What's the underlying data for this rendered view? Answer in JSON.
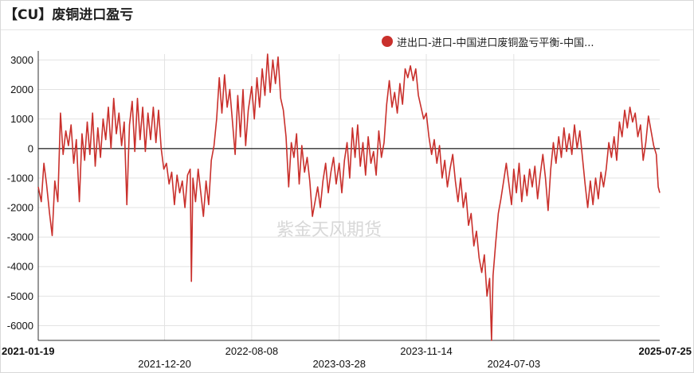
{
  "title": "【CU】废铜进口盈亏",
  "watermark": "紫金天风期货",
  "colors": {
    "series": "#c9302c",
    "grid": "#e2e2e2",
    "zero_line": "#333333"
  },
  "chart_data": {
    "type": "line",
    "title": "【CU】废铜进口盈亏",
    "xlabel": "",
    "ylabel": "",
    "ylim": [
      -6500,
      3200
    ],
    "yticks": [
      3000,
      2000,
      1000,
      0,
      -1000,
      -2000,
      -3000,
      -4000,
      -5000,
      -6000
    ],
    "ytick_labels": [
      "3000",
      "2000",
      "1000",
      "0",
      "-1000",
      "-2000",
      "-3000",
      "-4000",
      "-5000",
      "-6000"
    ],
    "xlim": [
      "2021-01-19",
      "2025-07-25"
    ],
    "xticks": [
      "2021-01-19",
      "2021-12-20",
      "2022-08-08",
      "2023-03-28",
      "2023-11-14",
      "2024-07-03",
      "2025-07-25"
    ],
    "xtick_rows": [
      0,
      1,
      0,
      1,
      0,
      1,
      0
    ],
    "xtick_bold": [
      true,
      false,
      false,
      false,
      false,
      false,
      true
    ],
    "grid": true,
    "legend": "top-right",
    "series": [
      {
        "name": "进出口-进口-中国进口废铜盈亏平衡-中国...",
        "points": [
          [
            "2021-01-19",
            -1300
          ],
          [
            "2021-01-27",
            -1800
          ],
          [
            "2021-02-03",
            -500
          ],
          [
            "2021-02-10",
            -1200
          ],
          [
            "2021-02-18",
            -2200
          ],
          [
            "2021-02-25",
            -2950
          ],
          [
            "2021-03-04",
            -1100
          ],
          [
            "2021-03-12",
            -1800
          ],
          [
            "2021-03-19",
            1200
          ],
          [
            "2021-03-26",
            -200
          ],
          [
            "2021-04-02",
            600
          ],
          [
            "2021-04-09",
            100
          ],
          [
            "2021-04-16",
            800
          ],
          [
            "2021-04-23",
            -500
          ],
          [
            "2021-04-30",
            300
          ],
          [
            "2021-05-08",
            -1800
          ],
          [
            "2021-05-15",
            500
          ],
          [
            "2021-05-22",
            -400
          ],
          [
            "2021-05-29",
            900
          ],
          [
            "2021-06-05",
            -200
          ],
          [
            "2021-06-12",
            1200
          ],
          [
            "2021-06-19",
            -600
          ],
          [
            "2021-06-26",
            700
          ],
          [
            "2021-07-03",
            -300
          ],
          [
            "2021-07-10",
            1000
          ],
          [
            "2021-07-17",
            300
          ],
          [
            "2021-07-24",
            1400
          ],
          [
            "2021-07-31",
            0
          ],
          [
            "2021-08-07",
            1700
          ],
          [
            "2021-08-14",
            500
          ],
          [
            "2021-08-21",
            1200
          ],
          [
            "2021-08-28",
            100
          ],
          [
            "2021-09-04",
            900
          ],
          [
            "2021-09-11",
            -1900
          ],
          [
            "2021-09-18",
            800
          ],
          [
            "2021-09-25",
            1600
          ],
          [
            "2021-10-02",
            -100
          ],
          [
            "2021-10-09",
            1700
          ],
          [
            "2021-10-16",
            300
          ],
          [
            "2021-10-23",
            1400
          ],
          [
            "2021-10-30",
            -100
          ],
          [
            "2021-11-06",
            1200
          ],
          [
            "2021-11-13",
            300
          ],
          [
            "2021-11-20",
            1400
          ],
          [
            "2021-11-27",
            200
          ],
          [
            "2021-12-04",
            1300
          ],
          [
            "2021-12-11",
            0
          ],
          [
            "2021-12-18",
            -700
          ],
          [
            "2021-12-25",
            -500
          ],
          [
            "2022-01-01",
            -1200
          ],
          [
            "2022-01-08",
            -800
          ],
          [
            "2022-01-15",
            -1900
          ],
          [
            "2022-01-22",
            -900
          ],
          [
            "2022-01-29",
            -1500
          ],
          [
            "2022-02-05",
            -1100
          ],
          [
            "2022-02-12",
            -2000
          ],
          [
            "2022-02-19",
            -900
          ],
          [
            "2022-02-26",
            -700
          ],
          [
            "2022-03-01",
            -4500
          ],
          [
            "2022-03-05",
            -1000
          ],
          [
            "2022-03-12",
            -1800
          ],
          [
            "2022-03-19",
            -700
          ],
          [
            "2022-03-26",
            -1500
          ],
          [
            "2022-04-02",
            -2300
          ],
          [
            "2022-04-09",
            -1100
          ],
          [
            "2022-04-16",
            -1900
          ],
          [
            "2022-04-23",
            -400
          ],
          [
            "2022-04-30",
            100
          ],
          [
            "2022-05-07",
            1000
          ],
          [
            "2022-05-14",
            2400
          ],
          [
            "2022-05-21",
            1200
          ],
          [
            "2022-05-28",
            2500
          ],
          [
            "2022-06-04",
            1400
          ],
          [
            "2022-06-11",
            2000
          ],
          [
            "2022-06-18",
            900
          ],
          [
            "2022-06-25",
            -200
          ],
          [
            "2022-07-02",
            1800
          ],
          [
            "2022-07-09",
            400
          ],
          [
            "2022-07-16",
            2000
          ],
          [
            "2022-07-23",
            100
          ],
          [
            "2022-07-30",
            1300
          ],
          [
            "2022-08-08",
            2100
          ],
          [
            "2022-08-15",
            1000
          ],
          [
            "2022-08-22",
            2400
          ],
          [
            "2022-08-29",
            1400
          ],
          [
            "2022-09-05",
            2700
          ],
          [
            "2022-09-12",
            1800
          ],
          [
            "2022-09-19",
            3200
          ],
          [
            "2022-09-26",
            1900
          ],
          [
            "2022-10-03",
            3000
          ],
          [
            "2022-10-10",
            2200
          ],
          [
            "2022-10-17",
            3100
          ],
          [
            "2022-10-24",
            1700
          ],
          [
            "2022-10-31",
            1300
          ],
          [
            "2022-11-07",
            400
          ],
          [
            "2022-11-14",
            -1300
          ],
          [
            "2022-11-21",
            200
          ],
          [
            "2022-11-28",
            -300
          ],
          [
            "2022-12-05",
            500
          ],
          [
            "2022-12-12",
            -1200
          ],
          [
            "2022-12-19",
            100
          ],
          [
            "2022-12-26",
            -800
          ],
          [
            "2023-01-02",
            -300
          ],
          [
            "2023-01-09",
            -1100
          ],
          [
            "2023-01-16",
            -2300
          ],
          [
            "2023-01-23",
            -1800
          ],
          [
            "2023-01-30",
            -1300
          ],
          [
            "2023-02-06",
            -2000
          ],
          [
            "2023-02-13",
            -1100
          ],
          [
            "2023-02-20",
            -500
          ],
          [
            "2023-02-27",
            -1500
          ],
          [
            "2023-03-06",
            -800
          ],
          [
            "2023-03-13",
            -300
          ],
          [
            "2023-03-20",
            -1200
          ],
          [
            "2023-03-28",
            -500
          ],
          [
            "2023-04-04",
            -1500
          ],
          [
            "2023-04-11",
            -400
          ],
          [
            "2023-04-18",
            200
          ],
          [
            "2023-04-25",
            -1000
          ],
          [
            "2023-05-02",
            700
          ],
          [
            "2023-05-09",
            -300
          ],
          [
            "2023-05-16",
            800
          ],
          [
            "2023-05-23",
            -600
          ],
          [
            "2023-05-30",
            200
          ],
          [
            "2023-06-06",
            -900
          ],
          [
            "2023-06-13",
            400
          ],
          [
            "2023-06-20",
            -500
          ],
          [
            "2023-06-27",
            -100
          ],
          [
            "2023-07-04",
            -900
          ],
          [
            "2023-07-11",
            600
          ],
          [
            "2023-07-18",
            -300
          ],
          [
            "2023-07-25",
            200
          ],
          [
            "2023-08-01",
            1500
          ],
          [
            "2023-08-08",
            2300
          ],
          [
            "2023-08-15",
            1400
          ],
          [
            "2023-08-22",
            1900
          ],
          [
            "2023-08-29",
            1200
          ],
          [
            "2023-09-05",
            2200
          ],
          [
            "2023-09-12",
            1500
          ],
          [
            "2023-09-19",
            2700
          ],
          [
            "2023-09-26",
            2400
          ],
          [
            "2023-10-03",
            2800
          ],
          [
            "2023-10-10",
            2300
          ],
          [
            "2023-10-17",
            2700
          ],
          [
            "2023-10-24",
            1800
          ],
          [
            "2023-10-31",
            1400
          ],
          [
            "2023-11-07",
            1000
          ],
          [
            "2023-11-14",
            1200
          ],
          [
            "2023-11-21",
            400
          ],
          [
            "2023-11-28",
            -200
          ],
          [
            "2023-12-05",
            300
          ],
          [
            "2023-12-12",
            -500
          ],
          [
            "2023-12-19",
            100
          ],
          [
            "2023-12-26",
            -1000
          ],
          [
            "2024-01-02",
            -400
          ],
          [
            "2024-01-09",
            -1300
          ],
          [
            "2024-01-16",
            -700
          ],
          [
            "2024-01-23",
            -200
          ],
          [
            "2024-01-30",
            -1100
          ],
          [
            "2024-02-06",
            -1800
          ],
          [
            "2024-02-13",
            -1000
          ],
          [
            "2024-02-20",
            -2000
          ],
          [
            "2024-02-27",
            -1500
          ],
          [
            "2024-03-05",
            -2600
          ],
          [
            "2024-03-12",
            -2200
          ],
          [
            "2024-03-19",
            -3300
          ],
          [
            "2024-03-26",
            -2800
          ],
          [
            "2024-04-02",
            -3700
          ],
          [
            "2024-04-09",
            -4200
          ],
          [
            "2024-04-16",
            -3600
          ],
          [
            "2024-04-23",
            -5000
          ],
          [
            "2024-04-30",
            -4400
          ],
          [
            "2024-05-05",
            -6500
          ],
          [
            "2024-05-09",
            -4300
          ],
          [
            "2024-05-16",
            -3200
          ],
          [
            "2024-05-23",
            -2200
          ],
          [
            "2024-05-30",
            -1700
          ],
          [
            "2024-06-06",
            -1100
          ],
          [
            "2024-06-13",
            -500
          ],
          [
            "2024-06-20",
            -1200
          ],
          [
            "2024-06-27",
            -1900
          ],
          [
            "2024-07-03",
            -700
          ],
          [
            "2024-07-10",
            -1500
          ],
          [
            "2024-07-17",
            -500
          ],
          [
            "2024-07-24",
            -1800
          ],
          [
            "2024-07-31",
            -900
          ],
          [
            "2024-08-07",
            -1600
          ],
          [
            "2024-08-14",
            -700
          ],
          [
            "2024-08-21",
            -1300
          ],
          [
            "2024-08-28",
            -600
          ],
          [
            "2024-09-04",
            -1700
          ],
          [
            "2024-09-11",
            -900
          ],
          [
            "2024-09-18",
            -200
          ],
          [
            "2024-09-25",
            -1000
          ],
          [
            "2024-10-02",
            -2100
          ],
          [
            "2024-10-09",
            -700
          ],
          [
            "2024-10-16",
            200
          ],
          [
            "2024-10-23",
            -500
          ],
          [
            "2024-10-30",
            400
          ],
          [
            "2024-11-06",
            -300
          ],
          [
            "2024-11-13",
            700
          ],
          [
            "2024-11-20",
            -100
          ],
          [
            "2024-11-27",
            500
          ],
          [
            "2024-12-04",
            -200
          ],
          [
            "2024-12-11",
            800
          ],
          [
            "2024-12-18",
            0
          ],
          [
            "2024-12-25",
            600
          ],
          [
            "2025-01-01",
            -300
          ],
          [
            "2025-01-08",
            -1200
          ],
          [
            "2025-01-15",
            -2000
          ],
          [
            "2025-01-22",
            -1100
          ],
          [
            "2025-01-29",
            -1900
          ],
          [
            "2025-02-05",
            -1000
          ],
          [
            "2025-02-12",
            -1700
          ],
          [
            "2025-02-19",
            -800
          ],
          [
            "2025-02-26",
            -1300
          ],
          [
            "2025-03-05",
            -700
          ],
          [
            "2025-03-12",
            200
          ],
          [
            "2025-03-19",
            -300
          ],
          [
            "2025-03-26",
            400
          ],
          [
            "2025-04-02",
            -400
          ],
          [
            "2025-04-09",
            900
          ],
          [
            "2025-04-16",
            400
          ],
          [
            "2025-04-23",
            1300
          ],
          [
            "2025-04-30",
            700
          ],
          [
            "2025-05-07",
            1400
          ],
          [
            "2025-05-14",
            900
          ],
          [
            "2025-05-21",
            1200
          ],
          [
            "2025-05-28",
            400
          ],
          [
            "2025-06-04",
            800
          ],
          [
            "2025-06-11",
            -400
          ],
          [
            "2025-06-18",
            200
          ],
          [
            "2025-06-25",
            1100
          ],
          [
            "2025-07-02",
            600
          ],
          [
            "2025-07-09",
            100
          ],
          [
            "2025-07-16",
            -200
          ],
          [
            "2025-07-21",
            -1300
          ],
          [
            "2025-07-25",
            -1500
          ]
        ]
      }
    ]
  }
}
